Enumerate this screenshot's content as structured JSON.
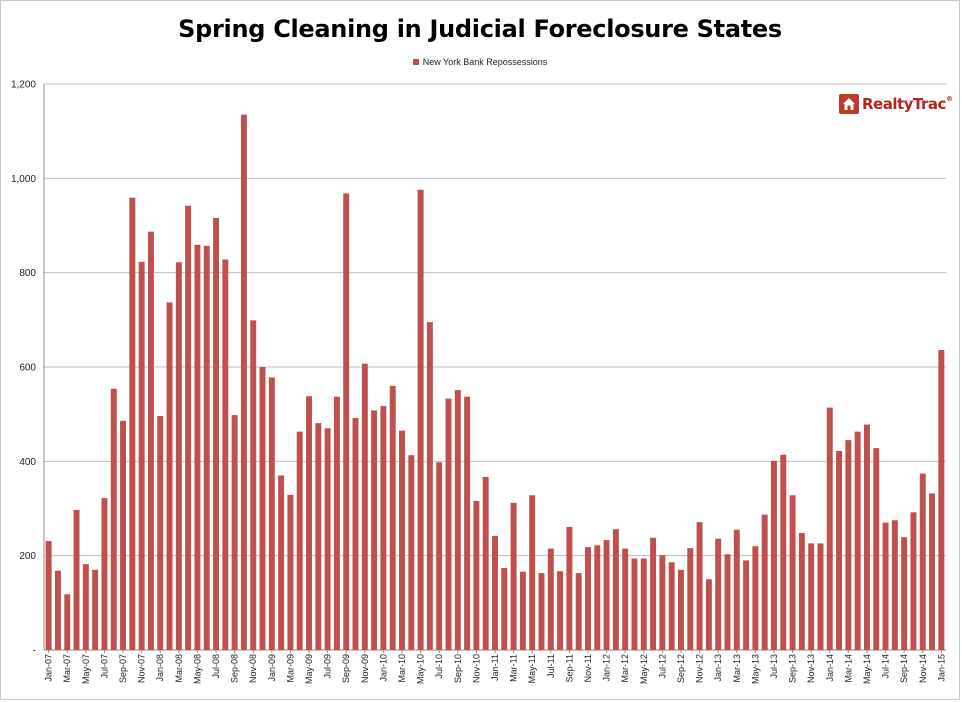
{
  "chart_data": {
    "type": "bar",
    "title": "Spring Cleaning in Judicial Foreclosure States",
    "xlabel": "",
    "ylabel": "",
    "ylim": [
      0,
      1200
    ],
    "yticks": [
      0,
      200,
      400,
      600,
      800,
      1000,
      1200
    ],
    "ytick_labels": [
      "-",
      "200",
      "400",
      "600",
      "800",
      "1,000",
      "1,200"
    ],
    "grid": true,
    "legend_position": "top",
    "series": [
      {
        "name": "New York Bank Repossessions",
        "color": "#c0504d",
        "values": [
          231,
          168,
          118,
          297,
          182,
          170,
          322,
          554,
          486,
          959,
          823,
          887,
          496,
          737,
          822,
          942,
          859,
          857,
          916,
          828,
          498,
          1135,
          699,
          600,
          578,
          370,
          329,
          463,
          538,
          481,
          470,
          537,
          968,
          492,
          607,
          508,
          517,
          560,
          465,
          413,
          976,
          695,
          398,
          533,
          551,
          537,
          316,
          367,
          242,
          174,
          312,
          166,
          328,
          163,
          215,
          167,
          261,
          163,
          218,
          222,
          233,
          256,
          215,
          194,
          194,
          238,
          201,
          186,
          170,
          216,
          271,
          150,
          236,
          203,
          255,
          190,
          220,
          287,
          401,
          414,
          328,
          248,
          226,
          226,
          514,
          422,
          445,
          463,
          478,
          428,
          270,
          275,
          239,
          292,
          374,
          332,
          636
        ]
      }
    ],
    "categories": [
      "Jan-07",
      "Feb-07",
      "Mar-07",
      "Apr-07",
      "May-07",
      "Jun-07",
      "Jul-07",
      "Aug-07",
      "Sep-07",
      "Oct-07",
      "Nov-07",
      "Dec-07",
      "Jan-08",
      "Feb-08",
      "Mar-08",
      "Apr-08",
      "May-08",
      "Jun-08",
      "Jul-08",
      "Aug-08",
      "Sep-08",
      "Oct-08",
      "Nov-08",
      "Dec-08",
      "Jan-09",
      "Feb-09",
      "Mar-09",
      "Apr-09",
      "May-09",
      "Jun-09",
      "Jul-09",
      "Aug-09",
      "Sep-09",
      "Oct-09",
      "Nov-09",
      "Dec-09",
      "Jan-10",
      "Feb-10",
      "Mar-10",
      "Apr-10",
      "May-10",
      "Jun-10",
      "Jul-10",
      "Aug-10",
      "Sep-10",
      "Oct-10",
      "Nov-10",
      "Dec-10",
      "Jan-11",
      "Feb-11",
      "Mar-11",
      "Apr-11",
      "May-11",
      "Jun-11",
      "Jul-11",
      "Aug-11",
      "Sep-11",
      "Oct-11",
      "Nov-11",
      "Dec-11",
      "Jan-12",
      "Feb-12",
      "Mar-12",
      "Apr-12",
      "May-12",
      "Jun-12",
      "Jul-12",
      "Aug-12",
      "Sep-12",
      "Oct-12",
      "Nov-12",
      "Dec-12",
      "Jan-13",
      "Feb-13",
      "Mar-13",
      "Apr-13",
      "May-13",
      "Jun-13",
      "Jul-13",
      "Aug-13",
      "Sep-13",
      "Oct-13",
      "Nov-13",
      "Dec-13",
      "Jan-14",
      "Feb-14",
      "Mar-14",
      "Apr-14",
      "May-14",
      "Jun-14",
      "Jul-14",
      "Aug-14",
      "Sep-14",
      "Oct-14",
      "Nov-14",
      "Dec-14",
      "Jan-15"
    ],
    "tick_labels": [
      "Jan-07",
      "Mar-07",
      "May-07",
      "Jul-07",
      "Sep-07",
      "Nov-07",
      "Jan-08",
      "Mar-08",
      "May-08",
      "Jul-08",
      "Sep-08",
      "Nov-08",
      "Jan-09",
      "Mar-09",
      "May-09",
      "Jul-09",
      "Sep-09",
      "Nov-09",
      "Jan-10",
      "Mar-10",
      "May-10",
      "Jul-10",
      "Sep-10",
      "Nov-10",
      "Jan-11",
      "Mar-11",
      "May-11",
      "Jul-11",
      "Sep-11",
      "Nov-11",
      "Jan-12",
      "Mar-12",
      "May-12",
      "Jul-12",
      "Sep-12",
      "Nov-12",
      "Jan-13",
      "Mar-13",
      "May-13",
      "Jul-13",
      "Sep-13",
      "Nov-13",
      "Jan-14",
      "Mar-14",
      "May-14",
      "Jul-14",
      "Sep-14",
      "Nov-14",
      "Jan-15"
    ]
  },
  "logo": {
    "text": "RealtyTrac",
    "trademark": "®",
    "icon": "house-icon",
    "color": "#b3261e"
  }
}
